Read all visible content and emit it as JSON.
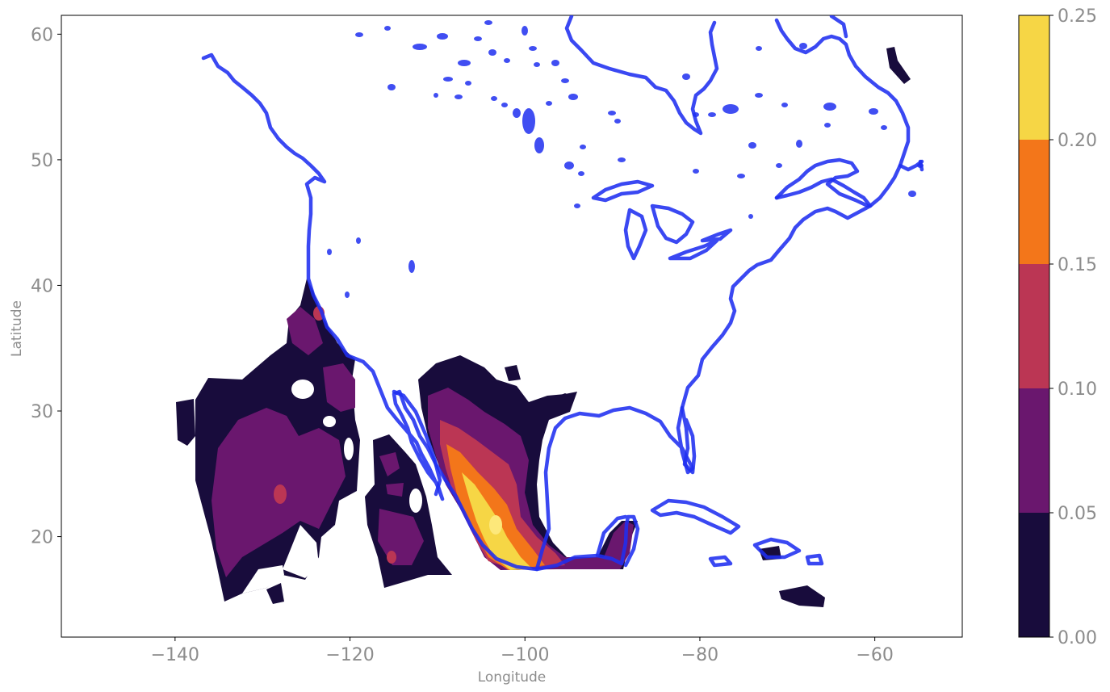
{
  "map_data": {
    "type": "filled-contour-map",
    "x_axis": {
      "label": "Longitude",
      "ticks": [
        -140,
        -120,
        -100,
        -80,
        -60
      ],
      "range": [
        -153,
        -50
      ]
    },
    "y_axis": {
      "label": "Latitude",
      "ticks": [
        20,
        30,
        40,
        50,
        60
      ],
      "range": [
        12,
        61.5
      ]
    },
    "colorbar": {
      "levels": [
        {
          "value_range": [
            0.0,
            0.05
          ],
          "color": "#180c3c"
        },
        {
          "value_range": [
            0.05,
            0.1
          ],
          "color": "#6a176e"
        },
        {
          "value_range": [
            0.1,
            0.15
          ],
          "color": "#bb3654"
        },
        {
          "value_range": [
            0.15,
            0.2
          ],
          "color": "#f3761a"
        },
        {
          "value_range": [
            0.2,
            0.25
          ],
          "color": "#f6d645"
        }
      ],
      "tick_labels": [
        "0.00",
        "0.05",
        "0.10",
        "0.15",
        "0.20",
        "0.25"
      ]
    },
    "coastline_color": "#1f2ff0"
  }
}
